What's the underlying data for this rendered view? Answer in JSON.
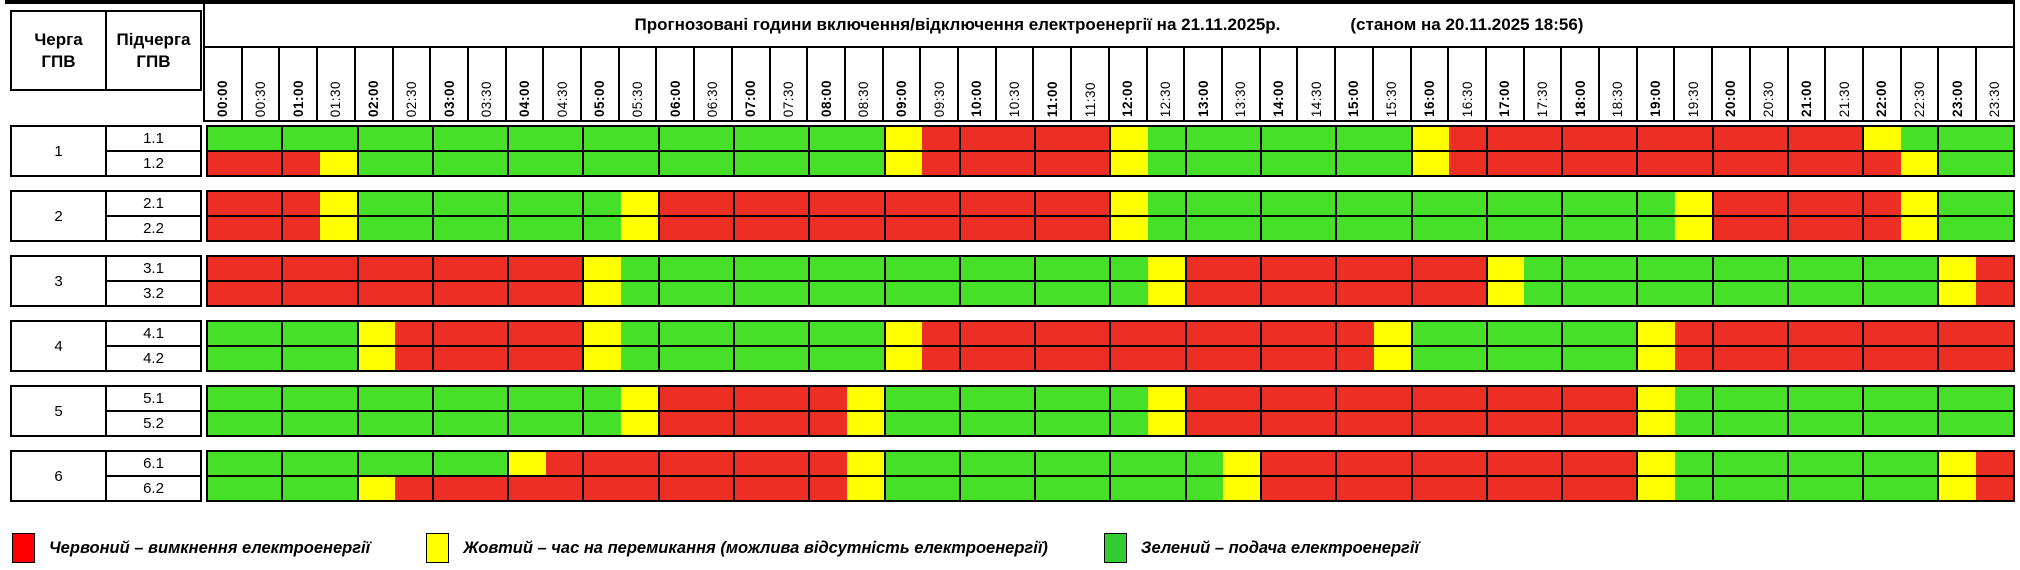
{
  "title": {
    "main": "Прогнозовані години включення/відключення електроенергії на 21.11.2025р.",
    "as_of": "(станом на 20.11.2025 18:56)"
  },
  "header": {
    "queue": "Черга\nГПВ",
    "subqueue": "Підчерга\nГПВ"
  },
  "times": [
    "00:00",
    "00:30",
    "01:00",
    "01:30",
    "02:00",
    "02:30",
    "03:00",
    "03:30",
    "04:00",
    "04:30",
    "05:00",
    "05:30",
    "06:00",
    "06:30",
    "07:00",
    "07:30",
    "08:00",
    "08:30",
    "09:00",
    "09:30",
    "10:00",
    "10:30",
    "11:00",
    "11:30",
    "12:00",
    "12:30",
    "13:00",
    "13:30",
    "14:00",
    "14:30",
    "15:00",
    "15:30",
    "16:00",
    "16:30",
    "17:00",
    "17:30",
    "18:00",
    "18:30",
    "19:00",
    "19:30",
    "20:00",
    "20:30",
    "21:00",
    "21:30",
    "22:00",
    "22:30",
    "23:00",
    "23:30"
  ],
  "colors": {
    "R": "#ed2e24",
    "Y": "#ffff00",
    "G": "#47e029"
  },
  "groups": [
    {
      "number": "1",
      "rows": [
        {
          "label": "1.1",
          "slots": "GGGGGGGGGGGGGGGGGGYRRRRRYGGGGGGGYRRRRRRRRRRRYGGG"
        },
        {
          "label": "1.2",
          "slots": "RRRYGGGGGGGGGGGGGGYRRRRRYGGGGGGGYRRRRRRRRRRRRYGG"
        }
      ]
    },
    {
      "number": "2",
      "rows": [
        {
          "label": "2.1",
          "slots": "RRRYGGGGGGGYRRRRRRRRRRRRYGGGGGGGGGGGGGGYRRRRRYGG"
        },
        {
          "label": "2.2",
          "slots": "RRRYGGGGGGGYRRRRRRRRRRRRYGGGGGGGGGGGGGGYRRRRRYGG"
        }
      ]
    },
    {
      "number": "3",
      "rows": [
        {
          "label": "3.1",
          "slots": "RRRRRRRRRRYGGGGGGGGGGGGGGYRRRRRRRRYGGGGGGGGGGGYR"
        },
        {
          "label": "3.2",
          "slots": "RRRRRRRRRRYGGGGGGGGGGGGGGYRRRRRRRRYGGGGGGGGGGGYR"
        }
      ]
    },
    {
      "number": "4",
      "rows": [
        {
          "label": "4.1",
          "slots": "GGGGYRRRRRYGGGGGGGYRRRRRRRRRRRRYGGGGGGYRRRRRRRRR"
        },
        {
          "label": "4.2",
          "slots": "GGGGYRRRRRYGGGGGGGYRRRRRRRRRRRRYGGGGGGYRRRRRRRRR"
        }
      ]
    },
    {
      "number": "5",
      "rows": [
        {
          "label": "5.1",
          "slots": "GGGGGGGGGGGYRRRRRYGGGGGGGYRRRRRRRRRRRRYGGGGGGGGG"
        },
        {
          "label": "5.2",
          "slots": "GGGGGGGGGGGYRRRRRYGGGGGGGYRRRRRRRRRRRRYGGGGGGGGG"
        }
      ]
    },
    {
      "number": "6",
      "rows": [
        {
          "label": "6.1",
          "slots": "GGGGGGGGYRRRRRRRRYGGGGGGGGGYRRRRRRRRRRYGGGGGGGYR"
        },
        {
          "label": "6.2",
          "slots": "GGGGYRRRRRRRRRRRRYGGGGGGGGGYRRRRRRRRRRYGGGGGGGYR"
        }
      ]
    }
  ],
  "legend": [
    {
      "color": "#ff0000",
      "name": "red",
      "label": "Червоний – вимкнення електроенергії"
    },
    {
      "color": "#ffff00",
      "name": "yellow",
      "label": "Жовтий – час на перемикання (можлива відсутність електроенергії)"
    },
    {
      "color": "#33cc33",
      "name": "green",
      "label": "Зелений – подача електроенергії"
    }
  ]
}
